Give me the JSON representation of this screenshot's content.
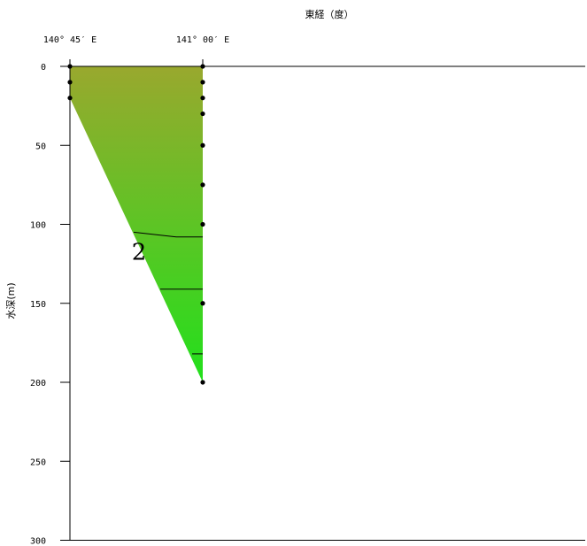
{
  "chart_data": {
    "type": "contour-section",
    "x_axis": {
      "title": "東経（度）",
      "position": "top",
      "ticks": [
        {
          "value": 140.75,
          "label": "140° 45′ E"
        },
        {
          "value": 141.0,
          "label": "141° 00′ E"
        }
      ],
      "range": [
        140.75,
        141.5
      ]
    },
    "y_axis": {
      "title": "水深(m)",
      "reversed": true,
      "range": [
        0,
        300
      ],
      "ticks": [
        0,
        50,
        100,
        150,
        200,
        250,
        300
      ]
    },
    "bathymetry": [
      {
        "lon": 140.75,
        "depth": 0
      },
      {
        "lon": 140.75,
        "depth": 20
      },
      {
        "lon": 141.0,
        "depth": 200
      }
    ],
    "stations": [
      {
        "lon": 140.75,
        "depths": [
          0,
          10,
          20
        ]
      },
      {
        "lon": 141.0,
        "depths": [
          0,
          10,
          20,
          30,
          50,
          75,
          100,
          150,
          200
        ]
      }
    ],
    "fill_gradient": {
      "top_color": "#99a82e",
      "bottom_color": "#22e01c"
    },
    "contours": [
      {
        "value": "2",
        "label": "2",
        "points": [
          {
            "lon": 140.87,
            "depth": 105
          },
          {
            "lon": 140.95,
            "depth": 108
          },
          {
            "lon": 141.0,
            "depth": 108
          }
        ]
      },
      {
        "value": "",
        "label": "",
        "points": [
          {
            "lon": 140.92,
            "depth": 141
          },
          {
            "lon": 141.0,
            "depth": 141
          }
        ]
      },
      {
        "value": "",
        "label": "",
        "points": [
          {
            "lon": 140.98,
            "depth": 182
          },
          {
            "lon": 141.0,
            "depth": 182
          }
        ]
      }
    ],
    "contour_label": {
      "text": "2",
      "lon": 140.88,
      "depth": 118
    }
  }
}
